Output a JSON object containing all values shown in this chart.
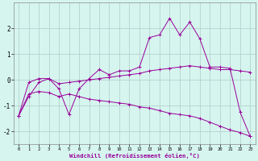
{
  "xlabel": "Windchill (Refroidissement éolien,°C)",
  "ylim": [
    -2.5,
    3.0
  ],
  "xlim": [
    -0.5,
    23.5
  ],
  "yticks": [
    -2,
    -1,
    0,
    1,
    2
  ],
  "x_ticks": [
    0,
    1,
    2,
    3,
    4,
    5,
    6,
    7,
    8,
    9,
    10,
    11,
    12,
    13,
    14,
    15,
    16,
    17,
    18,
    19,
    20,
    21,
    22,
    23
  ],
  "background_color": "#d6f5ef",
  "line_color": "#990099",
  "grid_color": "#b0ccc8",
  "series": [
    {
      "x": [
        0,
        1,
        2,
        3,
        4,
        5,
        6,
        7,
        8,
        9,
        10,
        11,
        12,
        13,
        14,
        15,
        16,
        17,
        18,
        19,
        20,
        21,
        22,
        23
      ],
      "y": [
        -1.4,
        -0.65,
        -0.1,
        0.05,
        -0.35,
        -1.35,
        -0.35,
        0.05,
        0.4,
        0.2,
        0.35,
        0.35,
        0.5,
        1.65,
        1.75,
        2.4,
        1.75,
        2.25,
        1.6,
        0.5,
        0.5,
        0.45,
        -1.25,
        -2.2
      ]
    },
    {
      "x": [
        0,
        1,
        2,
        3,
        4,
        5,
        6,
        7,
        8,
        9,
        10,
        11,
        12,
        13,
        14,
        15,
        16,
        17,
        18,
        19,
        20,
        21,
        22,
        23
      ],
      "y": [
        -1.4,
        -0.1,
        0.05,
        0.05,
        -0.15,
        -0.1,
        -0.05,
        0.0,
        0.05,
        0.1,
        0.15,
        0.2,
        0.25,
        0.35,
        0.4,
        0.45,
        0.5,
        0.55,
        0.5,
        0.45,
        0.4,
        0.4,
        0.35,
        0.3
      ]
    },
    {
      "x": [
        0,
        1,
        2,
        3,
        4,
        5,
        6,
        7,
        8,
        9,
        10,
        11,
        12,
        13,
        14,
        15,
        16,
        17,
        18,
        19,
        20,
        21,
        22,
        23
      ],
      "y": [
        -1.4,
        -0.55,
        -0.45,
        -0.5,
        -0.65,
        -0.55,
        -0.65,
        -0.75,
        -0.8,
        -0.85,
        -0.9,
        -0.95,
        -1.05,
        -1.1,
        -1.2,
        -1.3,
        -1.35,
        -1.4,
        -1.5,
        -1.65,
        -1.8,
        -1.95,
        -2.05,
        -2.2
      ]
    }
  ]
}
